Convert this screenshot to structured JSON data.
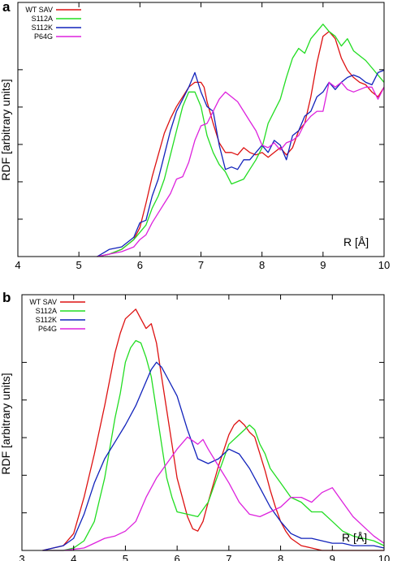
{
  "chart_data": [
    {
      "panel_label": "a",
      "type": "line",
      "xlabel": "R [Å]",
      "ylabel": "RDF [arbitrary units]",
      "xlim": [
        4,
        10
      ],
      "ylim": [
        0,
        1.05
      ],
      "x_ticks": [
        "4",
        "5",
        "6",
        "7",
        "8",
        "9",
        "10"
      ],
      "legend_position": "top-left",
      "series": [
        {
          "name": "WT SAV",
          "color": "#dd1111",
          "x": [
            5.3,
            5.5,
            5.7,
            5.9,
            6.0,
            6.1,
            6.2,
            6.3,
            6.4,
            6.5,
            6.6,
            6.7,
            6.8,
            6.9,
            7.0,
            7.05,
            7.1,
            7.2,
            7.3,
            7.4,
            7.5,
            7.6,
            7.7,
            7.8,
            7.9,
            8.0,
            8.1,
            8.2,
            8.3,
            8.4,
            8.5,
            8.6,
            8.7,
            8.8,
            8.9,
            9.0,
            9.1,
            9.2,
            9.3,
            9.4,
            9.5,
            9.6,
            9.7,
            9.8,
            9.9,
            10.0
          ],
          "y": [
            0.0,
            0.01,
            0.03,
            0.07,
            0.12,
            0.22,
            0.33,
            0.42,
            0.51,
            0.57,
            0.62,
            0.66,
            0.7,
            0.72,
            0.72,
            0.7,
            0.64,
            0.55,
            0.47,
            0.43,
            0.43,
            0.42,
            0.45,
            0.43,
            0.42,
            0.43,
            0.41,
            0.43,
            0.45,
            0.42,
            0.45,
            0.52,
            0.55,
            0.66,
            0.8,
            0.91,
            0.93,
            0.9,
            0.82,
            0.77,
            0.74,
            0.72,
            0.71,
            0.68,
            0.66,
            0.7
          ]
        },
        {
          "name": "S112A",
          "color": "#22dd22",
          "x": [
            5.3,
            5.5,
            5.7,
            5.9,
            6.0,
            6.1,
            6.2,
            6.3,
            6.4,
            6.5,
            6.6,
            6.7,
            6.8,
            6.9,
            7.0,
            7.1,
            7.2,
            7.3,
            7.4,
            7.5,
            7.6,
            7.7,
            7.8,
            7.9,
            8.0,
            8.1,
            8.2,
            8.3,
            8.4,
            8.5,
            8.6,
            8.7,
            8.8,
            8.9,
            9.0,
            9.1,
            9.2,
            9.3,
            9.4,
            9.5,
            9.6,
            9.7,
            9.8,
            9.9,
            10.0
          ],
          "y": [
            0.0,
            0.01,
            0.03,
            0.07,
            0.1,
            0.13,
            0.2,
            0.25,
            0.32,
            0.42,
            0.52,
            0.62,
            0.68,
            0.68,
            0.62,
            0.5,
            0.43,
            0.38,
            0.35,
            0.3,
            0.31,
            0.32,
            0.36,
            0.4,
            0.45,
            0.55,
            0.6,
            0.65,
            0.74,
            0.82,
            0.86,
            0.84,
            0.9,
            0.93,
            0.96,
            0.93,
            0.91,
            0.87,
            0.9,
            0.85,
            0.83,
            0.81,
            0.78,
            0.75,
            0.72
          ]
        },
        {
          "name": "S112K",
          "color": "#1122bb",
          "x": [
            5.3,
            5.5,
            5.7,
            5.9,
            6.0,
            6.1,
            6.2,
            6.3,
            6.4,
            6.5,
            6.6,
            6.7,
            6.8,
            6.9,
            7.0,
            7.1,
            7.2,
            7.3,
            7.4,
            7.5,
            7.6,
            7.7,
            7.8,
            7.9,
            8.0,
            8.1,
            8.2,
            8.3,
            8.4,
            8.5,
            8.6,
            8.7,
            8.8,
            8.9,
            9.0,
            9.1,
            9.2,
            9.3,
            9.4,
            9.5,
            9.6,
            9.7,
            9.8,
            9.9,
            10.0
          ],
          "y": [
            0.0,
            0.03,
            0.04,
            0.08,
            0.14,
            0.15,
            0.25,
            0.32,
            0.42,
            0.52,
            0.6,
            0.65,
            0.7,
            0.76,
            0.68,
            0.62,
            0.6,
            0.46,
            0.36,
            0.37,
            0.36,
            0.4,
            0.4,
            0.43,
            0.46,
            0.43,
            0.48,
            0.46,
            0.4,
            0.5,
            0.52,
            0.58,
            0.6,
            0.66,
            0.68,
            0.72,
            0.69,
            0.72,
            0.74,
            0.75,
            0.74,
            0.72,
            0.71,
            0.76,
            0.77
          ]
        },
        {
          "name": "P64G",
          "color": "#dd22dd",
          "x": [
            5.3,
            5.5,
            5.7,
            5.9,
            6.0,
            6.1,
            6.2,
            6.3,
            6.4,
            6.5,
            6.6,
            6.7,
            6.8,
            6.9,
            7.0,
            7.1,
            7.2,
            7.3,
            7.4,
            7.5,
            7.6,
            7.7,
            7.8,
            7.9,
            8.0,
            8.1,
            8.2,
            8.3,
            8.4,
            8.5,
            8.6,
            8.7,
            8.8,
            8.9,
            9.0,
            9.1,
            9.2,
            9.3,
            9.4,
            9.5,
            9.6,
            9.7,
            9.8,
            9.9,
            10.0
          ],
          "y": [
            0.0,
            0.01,
            0.02,
            0.04,
            0.07,
            0.09,
            0.14,
            0.18,
            0.22,
            0.26,
            0.32,
            0.33,
            0.39,
            0.48,
            0.54,
            0.55,
            0.6,
            0.65,
            0.68,
            0.66,
            0.64,
            0.6,
            0.56,
            0.52,
            0.46,
            0.45,
            0.47,
            0.44,
            0.47,
            0.48,
            0.5,
            0.55,
            0.58,
            0.6,
            0.6,
            0.72,
            0.7,
            0.72,
            0.69,
            0.68,
            0.69,
            0.7,
            0.7,
            0.65,
            0.7
          ]
        }
      ]
    },
    {
      "panel_label": "b",
      "type": "line",
      "xlabel": "R [Å]",
      "ylabel": "RDF [arbitrary units]",
      "xlim": [
        3,
        10
      ],
      "ylim": [
        0,
        1.06
      ],
      "x_ticks": [
        "3",
        "4",
        "5",
        "6",
        "7",
        "8",
        "9",
        "10"
      ],
      "legend_position": "top-left",
      "series": [
        {
          "name": "WT SAV",
          "color": "#dd1111",
          "x": [
            3.4,
            3.8,
            4.0,
            4.2,
            4.4,
            4.6,
            4.8,
            4.9,
            5.0,
            5.1,
            5.2,
            5.3,
            5.4,
            5.5,
            5.6,
            5.7,
            5.8,
            5.9,
            6.0,
            6.1,
            6.2,
            6.3,
            6.4,
            6.5,
            6.6,
            6.8,
            7.0,
            7.1,
            7.2,
            7.3,
            7.4,
            7.5,
            7.6,
            7.7,
            7.8,
            7.9,
            8.0,
            8.1,
            8.2,
            8.4,
            8.6,
            8.8,
            9.0,
            9.5,
            10.0
          ],
          "y": [
            0.0,
            0.02,
            0.07,
            0.22,
            0.4,
            0.6,
            0.82,
            0.9,
            0.96,
            0.98,
            1.0,
            0.96,
            0.92,
            0.94,
            0.86,
            0.72,
            0.58,
            0.44,
            0.3,
            0.22,
            0.14,
            0.09,
            0.08,
            0.12,
            0.2,
            0.35,
            0.48,
            0.52,
            0.54,
            0.52,
            0.49,
            0.47,
            0.4,
            0.33,
            0.25,
            0.18,
            0.12,
            0.08,
            0.05,
            0.02,
            0.01,
            0.0,
            0.0,
            0.0,
            0.0
          ]
        },
        {
          "name": "S112A",
          "color": "#22dd22",
          "x": [
            3.4,
            3.8,
            4.0,
            4.2,
            4.4,
            4.6,
            4.8,
            4.9,
            5.0,
            5.1,
            5.2,
            5.3,
            5.4,
            5.5,
            5.6,
            5.7,
            5.8,
            5.9,
            6.0,
            6.2,
            6.4,
            6.6,
            6.8,
            7.0,
            7.2,
            7.4,
            7.5,
            7.6,
            7.7,
            7.8,
            8.0,
            8.2,
            8.4,
            8.6,
            8.8,
            9.0,
            9.2,
            9.4,
            9.6,
            9.8,
            10.0
          ],
          "y": [
            0.0,
            0.0,
            0.01,
            0.04,
            0.12,
            0.3,
            0.55,
            0.65,
            0.78,
            0.84,
            0.87,
            0.86,
            0.8,
            0.72,
            0.58,
            0.44,
            0.3,
            0.22,
            0.16,
            0.15,
            0.14,
            0.2,
            0.32,
            0.44,
            0.48,
            0.52,
            0.5,
            0.44,
            0.4,
            0.34,
            0.28,
            0.22,
            0.2,
            0.16,
            0.16,
            0.12,
            0.08,
            0.06,
            0.05,
            0.04,
            0.02
          ]
        },
        {
          "name": "S112K",
          "color": "#1122bb",
          "x": [
            3.4,
            3.8,
            4.0,
            4.2,
            4.4,
            4.6,
            4.8,
            5.0,
            5.2,
            5.4,
            5.5,
            5.6,
            5.7,
            5.8,
            6.0,
            6.2,
            6.4,
            6.6,
            6.8,
            7.0,
            7.2,
            7.4,
            7.6,
            7.8,
            8.0,
            8.2,
            8.4,
            8.6,
            8.8,
            9.0,
            9.2,
            9.4,
            9.6,
            9.8,
            10.0
          ],
          "y": [
            0.0,
            0.02,
            0.05,
            0.15,
            0.28,
            0.38,
            0.45,
            0.52,
            0.6,
            0.7,
            0.75,
            0.78,
            0.76,
            0.72,
            0.64,
            0.5,
            0.38,
            0.36,
            0.38,
            0.42,
            0.4,
            0.34,
            0.26,
            0.18,
            0.12,
            0.07,
            0.05,
            0.05,
            0.04,
            0.03,
            0.03,
            0.02,
            0.02,
            0.02,
            0.01
          ]
        },
        {
          "name": "P64G",
          "color": "#dd22dd",
          "x": [
            3.4,
            3.8,
            4.2,
            4.4,
            4.6,
            4.8,
            5.0,
            5.2,
            5.4,
            5.6,
            5.8,
            6.0,
            6.2,
            6.4,
            6.5,
            6.6,
            6.8,
            7.0,
            7.2,
            7.4,
            7.6,
            7.8,
            8.0,
            8.2,
            8.4,
            8.6,
            8.8,
            9.0,
            9.2,
            9.4,
            9.6,
            9.8,
            10.0
          ],
          "y": [
            0.0,
            0.0,
            0.01,
            0.03,
            0.05,
            0.06,
            0.08,
            0.12,
            0.22,
            0.3,
            0.36,
            0.42,
            0.47,
            0.44,
            0.46,
            0.42,
            0.35,
            0.28,
            0.2,
            0.15,
            0.14,
            0.16,
            0.18,
            0.22,
            0.22,
            0.2,
            0.24,
            0.26,
            0.2,
            0.14,
            0.1,
            0.06,
            0.03
          ]
        }
      ]
    }
  ]
}
